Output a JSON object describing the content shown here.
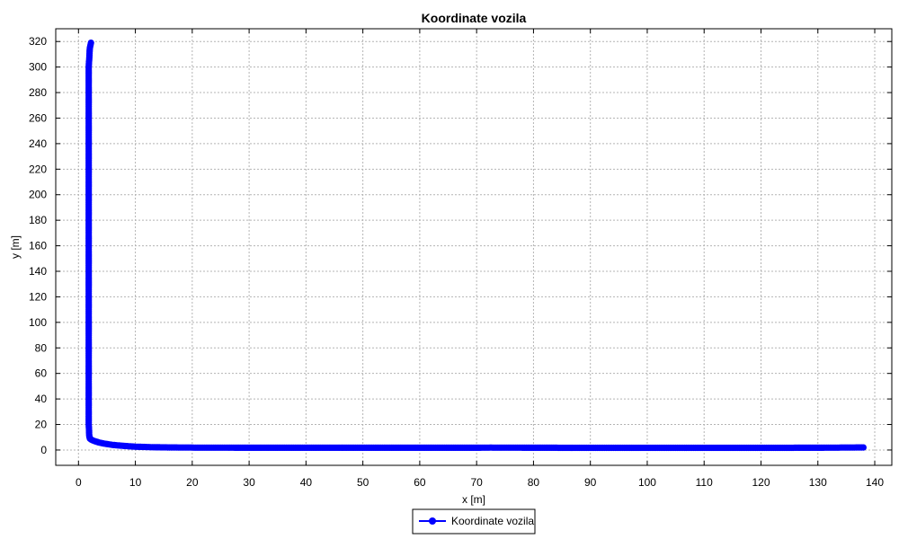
{
  "chart_data": {
    "type": "line",
    "title": "Koordinate vozila",
    "xlabel": "x [m]",
    "ylabel": "y [m]",
    "xlim": [
      -4,
      143
    ],
    "ylim": [
      -12,
      330
    ],
    "xticks": [
      0,
      10,
      20,
      30,
      40,
      50,
      60,
      70,
      80,
      90,
      100,
      110,
      120,
      130,
      140
    ],
    "yticks": [
      0,
      20,
      40,
      60,
      80,
      100,
      120,
      140,
      160,
      180,
      200,
      220,
      240,
      260,
      280,
      300,
      320
    ],
    "grid": true,
    "legend_position": "bottom-center",
    "colors": {
      "series": "#0000ff",
      "frame": "#000000",
      "grid": "#b4b4b4"
    },
    "series": [
      {
        "name": "Koordinate vozila",
        "x": [
          2.2,
          2.0,
          1.8,
          1.8,
          1.8,
          1.8,
          1.8,
          1.8,
          1.8,
          1.8,
          1.8,
          1.8,
          1.9,
          2.0,
          2.3,
          2.8,
          3.5,
          4.5,
          6.0,
          8.0,
          10.0,
          13.0,
          16.0,
          20.0,
          25.0,
          30.0,
          40.0,
          50.0,
          60.0,
          70.0,
          72.5,
          80.0,
          90.0,
          100.0,
          110.0,
          120.0,
          130.0,
          138.0
        ],
        "y": [
          319,
          315,
          300,
          280,
          250,
          220,
          190,
          160,
          120,
          80,
          40,
          20,
          11,
          9,
          8,
          7,
          6,
          5,
          4,
          3.2,
          2.6,
          2.2,
          2.0,
          1.9,
          1.85,
          1.8,
          1.8,
          1.8,
          1.8,
          1.8,
          1.9,
          1.8,
          1.7,
          1.7,
          1.7,
          1.7,
          1.8,
          2.0
        ]
      }
    ]
  }
}
